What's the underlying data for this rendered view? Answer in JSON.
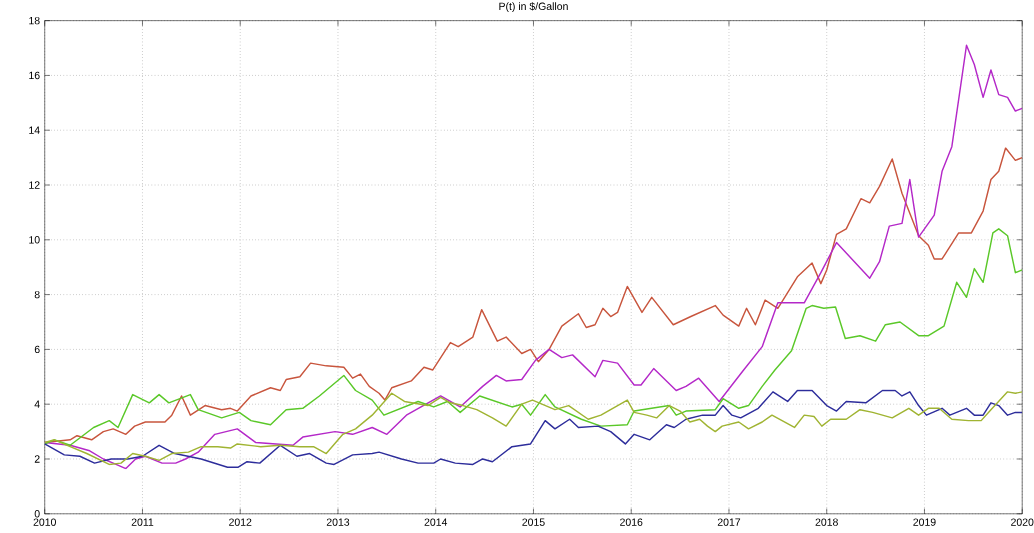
{
  "chart_data": {
    "type": "line",
    "title": "P(t) in $/Gallon",
    "xlim": [
      2010,
      2020
    ],
    "ylim": [
      0,
      18
    ],
    "xticks": [
      2010,
      2011,
      2012,
      2013,
      2014,
      2015,
      2016,
      2017,
      2018,
      2019,
      2020
    ],
    "yticks": [
      0,
      2,
      4,
      6,
      8,
      10,
      12,
      14,
      16,
      18
    ],
    "grid": true,
    "series": [
      {
        "color": "#c8553d",
        "x": [
          2010,
          2010.26,
          2010.33,
          2010.48,
          2010.6,
          2010.7,
          2010.83,
          2010.92,
          2011.03,
          2011.23,
          2011.3,
          2011.4,
          2011.49,
          2011.64,
          2011.81,
          2011.9,
          2011.97,
          2012.11,
          2012.31,
          2012.41,
          2012.47,
          2012.61,
          2012.72,
          2012.88,
          2013.06,
          2013.15,
          2013.23,
          2013.32,
          2013.42,
          2013.48,
          2013.55,
          2013.75,
          2013.88,
          2013.97,
          2014.15,
          2014.23,
          2014.38,
          2014.47,
          2014.63,
          2014.72,
          2014.88,
          2014.97,
          2015.05,
          2015.16,
          2015.29,
          2015.46,
          2015.54,
          2015.63,
          2015.71,
          2015.79,
          2015.86,
          2015.96,
          2016.11,
          2016.21,
          2016.43,
          2016.61,
          2016.86,
          2016.94,
          2017.1,
          2017.18,
          2017.27,
          2017.37,
          2017.5,
          2017.57,
          2017.7,
          2017.85,
          2017.94,
          2018.0,
          2018.1,
          2018.2,
          2018.35,
          2018.44,
          2018.54,
          2018.67,
          2018.77,
          2018.94,
          2019.04,
          2019.1,
          2019.18,
          2019.35,
          2019.48,
          2019.6,
          2019.68,
          2019.76,
          2019.83,
          2019.93,
          2020
        ],
        "values": [
          2.6,
          2.7,
          2.85,
          2.7,
          3.0,
          3.1,
          2.9,
          3.2,
          3.35,
          3.35,
          3.6,
          4.3,
          3.6,
          3.95,
          3.8,
          3.85,
          3.75,
          4.3,
          4.6,
          4.5,
          4.9,
          5.0,
          5.5,
          5.4,
          5.35,
          4.95,
          5.1,
          4.65,
          4.4,
          4.15,
          4.6,
          4.85,
          5.35,
          5.25,
          6.25,
          6.1,
          6.45,
          7.45,
          6.3,
          6.45,
          5.85,
          6.0,
          5.55,
          6.0,
          6.85,
          7.3,
          6.8,
          6.9,
          7.5,
          7.2,
          7.35,
          8.3,
          7.35,
          7.9,
          6.9,
          7.2,
          7.6,
          7.25,
          6.85,
          7.5,
          6.9,
          7.8,
          7.5,
          7.9,
          8.65,
          9.15,
          8.4,
          8.9,
          10.2,
          10.4,
          11.5,
          11.35,
          11.95,
          12.95,
          11.7,
          10.15,
          9.8,
          9.3,
          9.3,
          10.25,
          10.25,
          11.05,
          12.2,
          12.5,
          13.35,
          12.9,
          13.0
        ]
      },
      {
        "color": "#b428c8",
        "x": [
          2010,
          2010.26,
          2010.46,
          2010.6,
          2010.7,
          2010.83,
          2010.93,
          2011.03,
          2011.2,
          2011.34,
          2011.44,
          2011.57,
          2011.74,
          2011.97,
          2012.16,
          2012.54,
          2012.64,
          2012.97,
          2013.15,
          2013.35,
          2013.5,
          2013.7,
          2014.05,
          2014.25,
          2014.48,
          2014.62,
          2014.72,
          2014.88,
          2015.02,
          2015.16,
          2015.29,
          2015.4,
          2015.63,
          2015.71,
          2015.86,
          2016.03,
          2016.1,
          2016.23,
          2016.46,
          2016.56,
          2016.69,
          2016.9,
          2017.14,
          2017.34,
          2017.5,
          2017.77,
          2017.94,
          2018.1,
          2018.44,
          2018.54,
          2018.64,
          2018.77,
          2018.85,
          2018.94,
          2019.1,
          2019.18,
          2019.28,
          2019.43,
          2019.51,
          2019.6,
          2019.68,
          2019.76,
          2019.85,
          2019.93,
          2020
        ],
        "values": [
          2.6,
          2.5,
          2.3,
          2.0,
          1.85,
          1.65,
          2.0,
          2.1,
          1.85,
          1.85,
          2.0,
          2.25,
          2.9,
          3.1,
          2.6,
          2.5,
          2.8,
          3.0,
          2.9,
          3.15,
          2.9,
          3.6,
          4.3,
          3.9,
          4.65,
          5.05,
          4.85,
          4.9,
          5.6,
          6.0,
          5.7,
          5.8,
          5.0,
          5.6,
          5.5,
          4.7,
          4.7,
          5.3,
          4.5,
          4.65,
          4.95,
          4.1,
          5.2,
          6.1,
          7.7,
          7.7,
          8.8,
          9.9,
          8.6,
          9.2,
          10.5,
          10.6,
          12.2,
          10.1,
          10.9,
          12.5,
          13.4,
          17.1,
          16.4,
          15.2,
          16.2,
          15.3,
          15.2,
          14.7,
          14.8
        ]
      },
      {
        "color": "#5ac828",
        "x": [
          2010,
          2010.1,
          2010.26,
          2010.5,
          2010.66,
          2010.75,
          2010.9,
          2011.07,
          2011.17,
          2011.27,
          2011.49,
          2011.57,
          2011.81,
          2011.99,
          2012.11,
          2012.31,
          2012.47,
          2012.64,
          2012.81,
          2013.06,
          2013.18,
          2013.35,
          2013.47,
          2013.82,
          2013.98,
          2014.12,
          2014.25,
          2014.45,
          2014.78,
          2014.88,
          2014.97,
          2015.12,
          2015.22,
          2015.49,
          2015.69,
          2015.96,
          2016.03,
          2016.29,
          2016.39,
          2016.46,
          2016.56,
          2016.86,
          2016.94,
          2017.1,
          2017.2,
          2017.34,
          2017.47,
          2017.64,
          2017.79,
          2017.85,
          2017.97,
          2018.09,
          2018.19,
          2018.34,
          2018.5,
          2018.6,
          2018.75,
          2018.94,
          2019.04,
          2019.2,
          2019.33,
          2019.43,
          2019.51,
          2019.6,
          2019.7,
          2019.76,
          2019.85,
          2019.93,
          2020
        ],
        "values": [
          2.55,
          2.7,
          2.5,
          3.15,
          3.4,
          3.15,
          4.35,
          4.05,
          4.35,
          4.05,
          4.35,
          3.8,
          3.5,
          3.7,
          3.4,
          3.25,
          3.8,
          3.85,
          4.3,
          5.05,
          4.5,
          4.15,
          3.6,
          4.1,
          3.9,
          4.1,
          3.7,
          4.3,
          3.9,
          4.0,
          3.6,
          4.35,
          3.9,
          3.45,
          3.2,
          3.25,
          3.75,
          3.9,
          3.95,
          3.6,
          3.75,
          3.8,
          4.2,
          3.85,
          3.95,
          4.65,
          5.25,
          5.95,
          7.5,
          7.6,
          7.5,
          7.55,
          6.4,
          6.5,
          6.3,
          6.9,
          7.0,
          6.5,
          6.5,
          6.85,
          8.45,
          7.9,
          8.95,
          8.45,
          10.25,
          10.4,
          10.15,
          8.8,
          8.9
        ]
      },
      {
        "color": "#2d2d9b",
        "x": [
          2010,
          2010.2,
          2010.36,
          2010.51,
          2010.68,
          2010.85,
          2011.0,
          2011.17,
          2011.33,
          2011.6,
          2011.87,
          2011.98,
          2012.07,
          2012.2,
          2012.41,
          2012.58,
          2012.71,
          2012.88,
          2012.96,
          2013.15,
          2013.35,
          2013.42,
          2013.65,
          2013.82,
          2013.98,
          2014.05,
          2014.2,
          2014.38,
          2014.48,
          2014.58,
          2014.78,
          2014.97,
          2015.12,
          2015.22,
          2015.37,
          2015.46,
          2015.66,
          2015.79,
          2015.94,
          2016.03,
          2016.19,
          2016.36,
          2016.44,
          2016.56,
          2016.73,
          2016.86,
          2016.94,
          2017.03,
          2017.12,
          2017.3,
          2017.45,
          2017.6,
          2017.7,
          2017.85,
          2018.0,
          2018.1,
          2018.2,
          2018.4,
          2018.57,
          2018.7,
          2018.77,
          2018.85,
          2018.94,
          2019.02,
          2019.18,
          2019.26,
          2019.43,
          2019.51,
          2019.6,
          2019.68,
          2019.76,
          2019.85,
          2019.93,
          2020
        ],
        "values": [
          2.55,
          2.15,
          2.1,
          1.85,
          2.0,
          2.0,
          2.1,
          2.5,
          2.2,
          2.0,
          1.7,
          1.7,
          1.9,
          1.85,
          2.5,
          2.1,
          2.2,
          1.85,
          1.8,
          2.15,
          2.2,
          2.25,
          2.0,
          1.85,
          1.85,
          2.0,
          1.85,
          1.8,
          2.0,
          1.9,
          2.45,
          2.55,
          3.4,
          3.1,
          3.45,
          3.15,
          3.2,
          3.0,
          2.55,
          2.9,
          2.7,
          3.25,
          3.15,
          3.45,
          3.6,
          3.6,
          3.95,
          3.6,
          3.5,
          3.85,
          4.45,
          4.1,
          4.5,
          4.5,
          3.95,
          3.75,
          4.1,
          4.05,
          4.5,
          4.5,
          4.3,
          4.45,
          3.95,
          3.6,
          3.85,
          3.6,
          3.85,
          3.6,
          3.6,
          4.05,
          3.95,
          3.6,
          3.7,
          3.7
        ]
      },
      {
        "color": "#a0b432",
        "x": [
          2010,
          2010.1,
          2010.23,
          2010.43,
          2010.66,
          2010.78,
          2010.9,
          2011.03,
          2011.17,
          2011.3,
          2011.47,
          2011.6,
          2011.77,
          2011.9,
          2011.97,
          2012.21,
          2012.41,
          2012.61,
          2012.75,
          2012.88,
          2013.05,
          2013.18,
          2013.35,
          2013.55,
          2013.68,
          2013.92,
          2014.05,
          2014.15,
          2014.28,
          2014.42,
          2014.58,
          2014.72,
          2014.88,
          2014.99,
          2015.22,
          2015.36,
          2015.56,
          2015.69,
          2015.96,
          2016.03,
          2016.16,
          2016.26,
          2016.39,
          2016.5,
          2016.6,
          2016.7,
          2016.78,
          2016.86,
          2016.93,
          2017.1,
          2017.2,
          2017.34,
          2017.44,
          2017.67,
          2017.77,
          2017.87,
          2017.95,
          2018.04,
          2018.2,
          2018.34,
          2018.47,
          2018.67,
          2018.84,
          2018.94,
          2019.04,
          2019.15,
          2019.28,
          2019.45,
          2019.58,
          2019.68,
          2019.85,
          2019.93,
          2020
        ],
        "values": [
          2.6,
          2.7,
          2.5,
          2.2,
          1.8,
          1.85,
          2.2,
          2.1,
          1.95,
          2.2,
          2.25,
          2.45,
          2.45,
          2.4,
          2.55,
          2.45,
          2.5,
          2.45,
          2.45,
          2.2,
          2.9,
          3.1,
          3.6,
          4.4,
          4.1,
          3.95,
          4.25,
          4.05,
          3.95,
          3.8,
          3.5,
          3.2,
          4.0,
          4.15,
          3.8,
          3.95,
          3.45,
          3.6,
          4.15,
          3.7,
          3.6,
          3.5,
          3.95,
          3.75,
          3.35,
          3.45,
          3.2,
          3.0,
          3.2,
          3.35,
          3.1,
          3.35,
          3.6,
          3.15,
          3.6,
          3.55,
          3.2,
          3.45,
          3.45,
          3.8,
          3.7,
          3.5,
          3.85,
          3.6,
          3.85,
          3.85,
          3.45,
          3.4,
          3.4,
          3.8,
          4.45,
          4.4,
          4.45
        ]
      }
    ]
  }
}
